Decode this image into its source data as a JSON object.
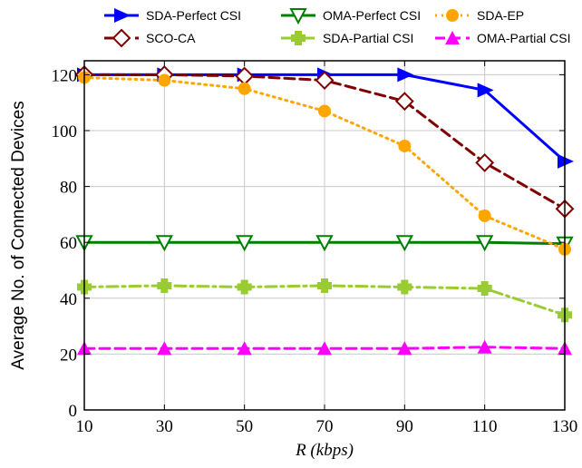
{
  "chart_data": {
    "type": "line",
    "title": "",
    "xlabel": "R (kbps)",
    "ylabel": "Average No. of Connected Devices",
    "x": [
      10,
      30,
      50,
      70,
      90,
      110,
      130
    ],
    "xlim": [
      10,
      130
    ],
    "ylim": [
      0,
      125
    ],
    "xticks": [
      "10",
      "30",
      "50",
      "70",
      "90",
      "110",
      "130"
    ],
    "yticks": [
      "0",
      "20",
      "40",
      "60",
      "80",
      "100",
      "120"
    ],
    "grid": true,
    "legend_position": "top",
    "series": [
      {
        "name": "SDA-Perfect CSI",
        "values": [
          120,
          120,
          120,
          120,
          120,
          114.5,
          89
        ],
        "color": "#0000ff",
        "marker": "triangle-right",
        "dash": "solid"
      },
      {
        "name": "SCO-CA",
        "values": [
          120,
          120,
          119.5,
          118,
          110.5,
          88.5,
          72
        ],
        "color": "#800000",
        "marker": "diamond-open",
        "dash": "dashed"
      },
      {
        "name": "OMA-Perfect CSI",
        "values": [
          60,
          60,
          60,
          60,
          60,
          60,
          59.5
        ],
        "color": "#008000",
        "marker": "triangle-down-open",
        "dash": "solid"
      },
      {
        "name": "SDA-Partial CSI",
        "values": [
          44,
          44.5,
          44,
          44.5,
          44,
          43.5,
          34
        ],
        "color": "#99cc33",
        "marker": "plus",
        "dash": "dashdot"
      },
      {
        "name": "SDA-EP",
        "values": [
          119,
          118,
          115,
          107,
          94.5,
          69.5,
          57.5
        ],
        "color": "#ffa500",
        "marker": "circle",
        "dash": "dotted"
      },
      {
        "name": "OMA-Partial CSI",
        "values": [
          22,
          22,
          22,
          22,
          22,
          22.5,
          22
        ],
        "color": "#ff00ff",
        "marker": "triangle-up",
        "dash": "dashed"
      }
    ]
  }
}
